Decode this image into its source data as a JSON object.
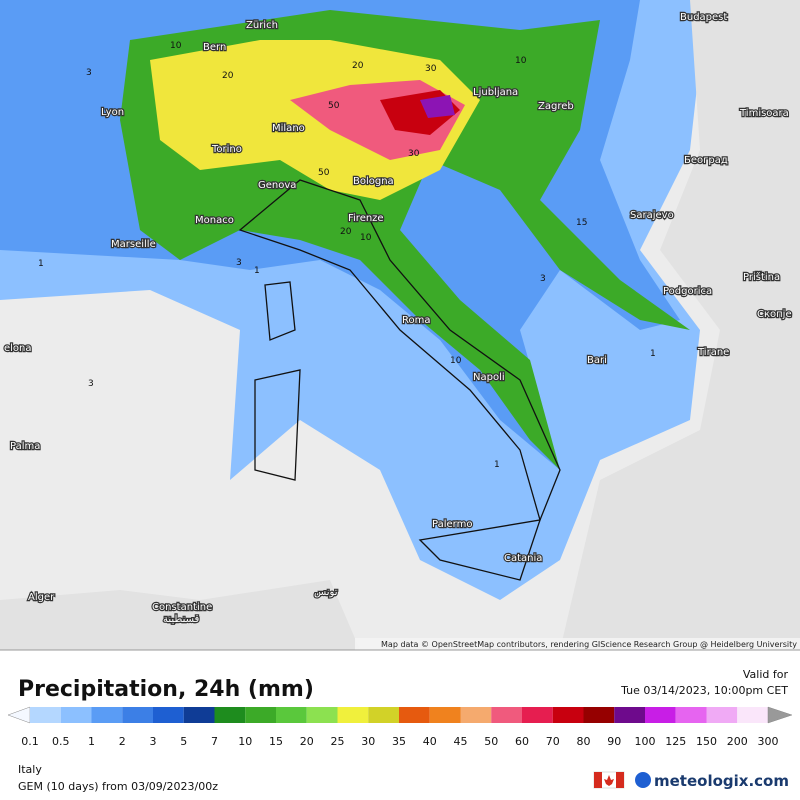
{
  "map": {
    "cities": [
      "Budapest",
      "Zürich",
      "Bern",
      "Lyon",
      "Ljubljana",
      "Zagreb",
      "Timisoara",
      "Milano",
      "Torino",
      "Београд",
      "Genova",
      "Bologna",
      "Monaco",
      "Sarajevo",
      "Firenze",
      "Marseille",
      "Priština",
      "Podgorica",
      "Скопје",
      "Roma",
      "Tirane",
      "Bari",
      "elona",
      "Napoli",
      "Palma",
      "Palermo",
      "Catania",
      "Alger",
      "تونس",
      "Constantine",
      "قسنطينة"
    ],
    "contour_labels": [
      10,
      10,
      10,
      10,
      3,
      3,
      3,
      3,
      20,
      20,
      20,
      1,
      1,
      1,
      1,
      50,
      50,
      30,
      30,
      15
    ],
    "attribution": "Map data © OpenStreetMap contributors, rendering GIScience Research Group @ Heidelberg University"
  },
  "header": {
    "title": "Precipitation, 24h (mm)",
    "valid_label": "Valid for",
    "valid_time": "Tue 03/14/2023, 10:00pm CET"
  },
  "legend": {
    "ticks": [
      0.1,
      0.5,
      1,
      2,
      3,
      5,
      7,
      10,
      15,
      20,
      25,
      30,
      35,
      40,
      45,
      50,
      60,
      70,
      80,
      90,
      100,
      125,
      150,
      200,
      300
    ],
    "colors": [
      "#f4f8ff",
      "#b4d7ff",
      "#8cc0ff",
      "#5a9cf5",
      "#3c7fe6",
      "#1e5fd2",
      "#0f3c96",
      "#1e8c1e",
      "#3caa28",
      "#5ac83c",
      "#8ce150",
      "#f0f03c",
      "#d2d228",
      "#e65a0f",
      "#f0821e",
      "#f5aa6e",
      "#f05a7d",
      "#e61e50",
      "#c8000f",
      "#960000",
      "#6e0a8c",
      "#c81ee6",
      "#e664f0",
      "#f0aaf5",
      "#fae6fa",
      "#999999"
    ]
  },
  "footer": {
    "region": "Italy",
    "model": "GEM (10 days) from 03/09/2023/00z",
    "brand": "meteologix.com"
  }
}
